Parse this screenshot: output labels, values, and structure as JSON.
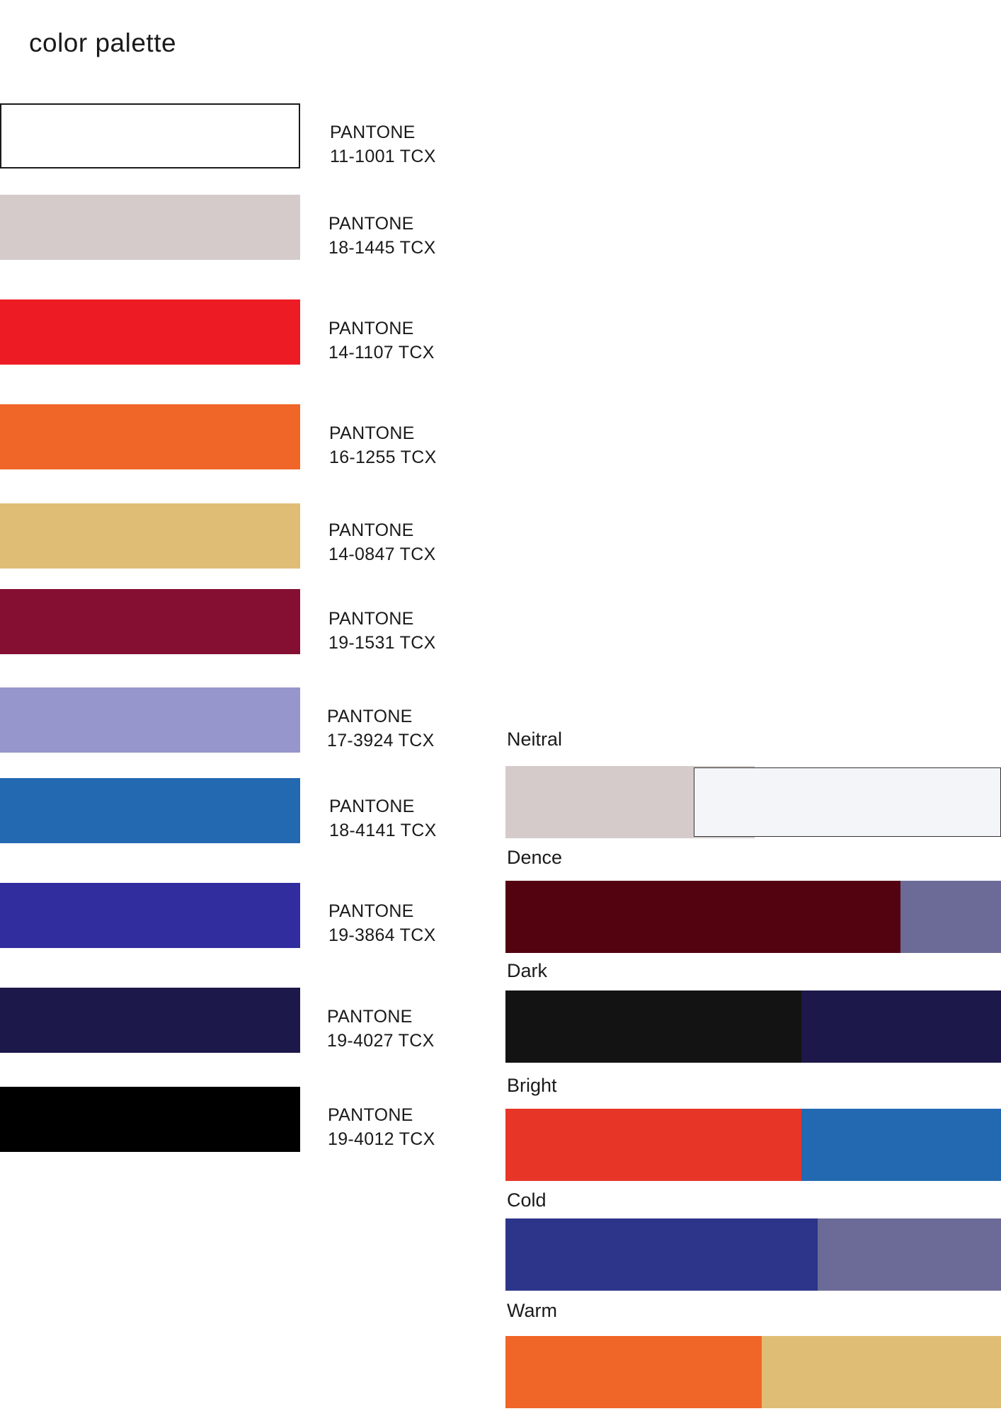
{
  "page": {
    "title": "color palette"
  },
  "swatches": [
    {
      "color": "#FFFFFF",
      "outlined": true,
      "line1": "PANTONE",
      "line2": "11-1001 TCX"
    },
    {
      "color": "#D5CBCB",
      "outlined": false,
      "line1": "PANTONE",
      "line2": "18-1445 TCX"
    },
    {
      "color": "#ED1C24",
      "outlined": false,
      "line1": "PANTONE",
      "line2": "14-1107 TCX"
    },
    {
      "color": "#F06528",
      "outlined": false,
      "line1": "PANTONE",
      "line2": "16-1255 TCX"
    },
    {
      "color": "#E0BD75",
      "outlined": false,
      "line1": "PANTONE",
      "line2": "14-0847 TCX"
    },
    {
      "color": "#850F32",
      "outlined": false,
      "line1": "PANTONE",
      "line2": "19-1531 TCX"
    },
    {
      "color": "#9696CC",
      "outlined": false,
      "line1": "PANTONE",
      "line2": "17-3924 TCX"
    },
    {
      "color": "#2369B1",
      "outlined": false,
      "line1": "PANTONE",
      "line2": "18-4141 TCX"
    },
    {
      "color": "#312D9E",
      "outlined": false,
      "line1": "PANTONE",
      "line2": "19-3864 TCX"
    },
    {
      "color": "#1C1849",
      "outlined": false,
      "line1": "PANTONE",
      "line2": "19-4027 TCX"
    },
    {
      "color": "#000000",
      "outlined": false,
      "line1": "PANTONE",
      "line2": "19-4012 TCX"
    }
  ],
  "combinations": [
    {
      "label": "Neitral",
      "colors": [
        "#D5CBCB",
        "#F4F5F9"
      ]
    },
    {
      "label": "Dence",
      "colors": [
        "#530310",
        "#6C6B97"
      ]
    },
    {
      "label": "Dark",
      "colors": [
        "#131313",
        "#1C1849"
      ]
    },
    {
      "label": "Bright",
      "colors": [
        "#E73628",
        "#2369B1"
      ]
    },
    {
      "label": "Cold",
      "colors": [
        "#2C358A",
        "#6C6B97"
      ]
    },
    {
      "label": "Warm",
      "colors": [
        "#F06528",
        "#E0BD75"
      ]
    }
  ]
}
